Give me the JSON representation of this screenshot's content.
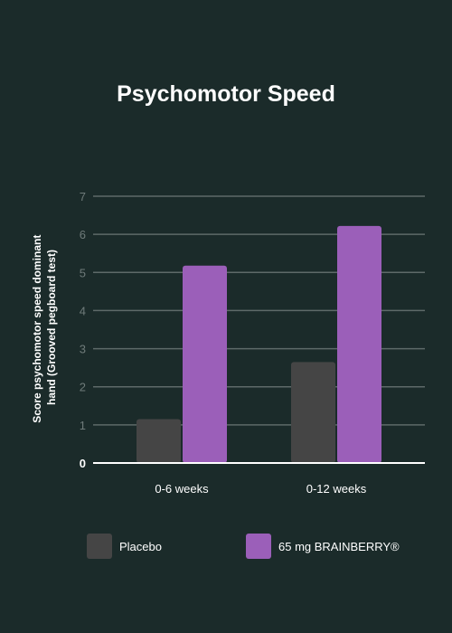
{
  "chart_data": {
    "type": "bar",
    "title": "Psychomotor Speed",
    "ylabel_lines": [
      "Score psychomotor speed dominant",
      "hand (Grooved pegboard test)"
    ],
    "xlabel": "",
    "categories": [
      "0-6 weeks",
      "0-12 weeks"
    ],
    "series": [
      {
        "name": "Placebo",
        "values": [
          1.15,
          2.65
        ],
        "color": "#454545"
      },
      {
        "name": "65 mg BRAINBERRY®",
        "values": [
          5.18,
          6.22
        ],
        "color": "#9b5fb9"
      }
    ],
    "ylim": [
      0,
      7
    ],
    "yticks": [
      "0",
      "1",
      "2",
      "3",
      "4",
      "5",
      "6",
      "7"
    ],
    "grid": true,
    "legend_position": "bottom"
  },
  "colors": {
    "background": "#1b2b2a",
    "grid": "#5e6a69",
    "axis": "#ffffff"
  }
}
